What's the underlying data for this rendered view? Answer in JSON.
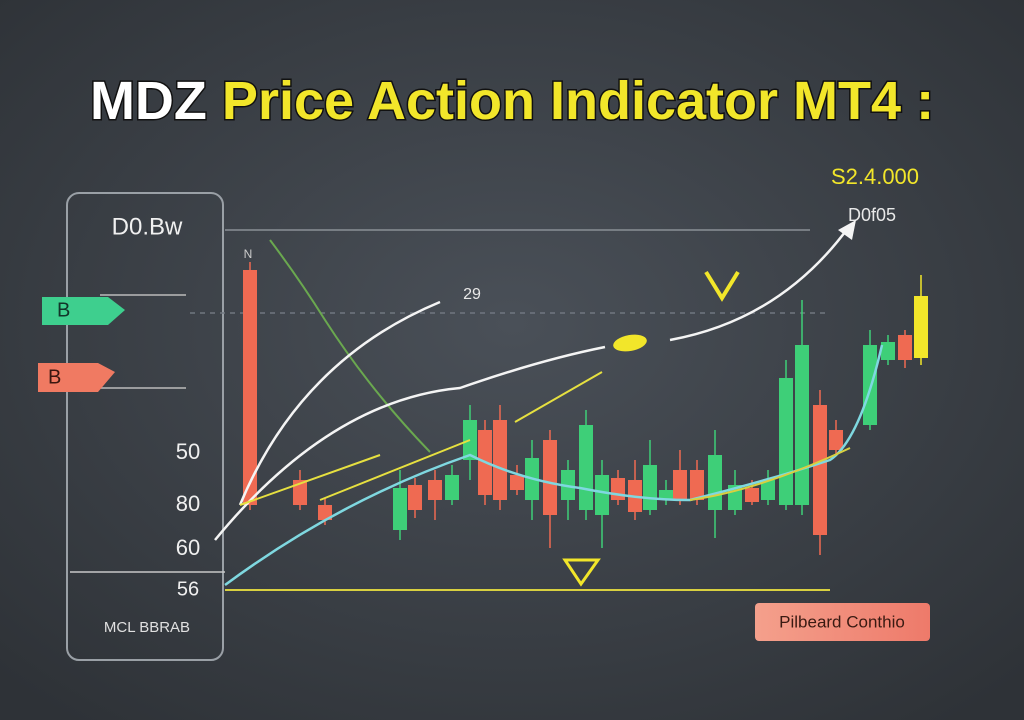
{
  "header": {
    "title_lead": "MDZ",
    "title_main": "Price Action Indicator MT4",
    "title_tail": ":"
  },
  "price_top": "S2.4.000",
  "price_sub": "D0f05",
  "panel": {
    "title": "D0.Bw",
    "tags": [
      "B",
      "B"
    ],
    "levels": [
      "50",
      "80",
      "60",
      "56"
    ],
    "footer": "MCL BBRAB"
  },
  "annotations": {
    "mid_label": "29",
    "top_mark": "N",
    "peak_mark": "V"
  },
  "button": "Pilbeard Conthio"
}
